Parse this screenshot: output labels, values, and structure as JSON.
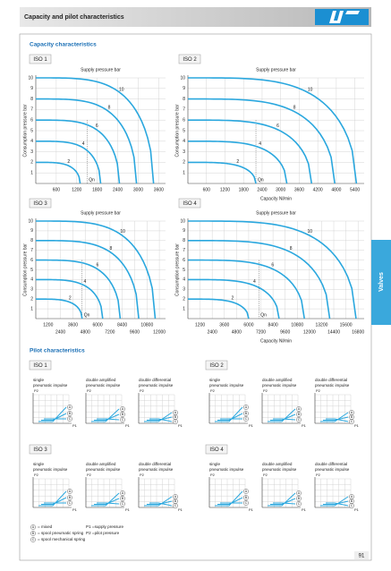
{
  "header": {
    "title": "Capacity and pilot characteristics"
  },
  "side_tab": "Valves",
  "page_number": "91",
  "capacity": {
    "heading": "Capacity characteristics",
    "top_label": "Supply pressure bar",
    "y_label": "Consumption pressure bar",
    "qn_label": "Qn",
    "charts": [
      {
        "name": "ISO 1",
        "xlim": [
          0,
          3800
        ],
        "ylim": [
          0,
          10
        ],
        "xticks": [
          600,
          1200,
          1800,
          2400,
          3000,
          3600
        ],
        "yticks": [
          1,
          2,
          3,
          4,
          5,
          6,
          7,
          8,
          9,
          10
        ],
        "qn": 1500,
        "curves": [
          {
            "pressure": 10,
            "max_flow": 3450
          },
          {
            "pressure": 8,
            "max_flow": 2950
          },
          {
            "pressure": 6,
            "max_flow": 2450
          },
          {
            "pressure": 4,
            "max_flow": 1900
          },
          {
            "pressure": 2,
            "max_flow": 1300
          }
        ]
      },
      {
        "name": "ISO 2",
        "xlim": [
          0,
          5700
        ],
        "ylim": [
          0,
          10
        ],
        "xticks": [
          600,
          1200,
          1800,
          2400,
          3000,
          3600,
          4200,
          4800,
          5400
        ],
        "yticks": [
          1,
          2,
          3,
          4,
          5,
          6,
          7,
          8,
          9,
          10
        ],
        "qn": 2200,
        "x_label": "Capacity Nl/min",
        "curves": [
          {
            "pressure": 10,
            "max_flow": 5450
          },
          {
            "pressure": 8,
            "max_flow": 4750
          },
          {
            "pressure": 6,
            "max_flow": 4000
          },
          {
            "pressure": 4,
            "max_flow": 3200
          },
          {
            "pressure": 2,
            "max_flow": 2200
          }
        ]
      },
      {
        "name": "ISO 3",
        "xlim": [
          0,
          12600
        ],
        "ylim": [
          0,
          10
        ],
        "xticks": [
          1200,
          2400,
          3600,
          4800,
          6000,
          7200,
          8400,
          9600,
          10800,
          12000
        ],
        "yticks": [
          1,
          2,
          3,
          4,
          5,
          6,
          7,
          8,
          9,
          10
        ],
        "qn": 4500,
        "curves": [
          {
            "pressure": 10,
            "max_flow": 11600
          },
          {
            "pressure": 8,
            "max_flow": 10000
          },
          {
            "pressure": 6,
            "max_flow": 8200
          },
          {
            "pressure": 4,
            "max_flow": 6500
          },
          {
            "pressure": 2,
            "max_flow": 4500
          }
        ]
      },
      {
        "name": "ISO 4",
        "xlim": [
          0,
          17400
        ],
        "ylim": [
          0,
          10
        ],
        "xticks": [
          1200,
          2400,
          3600,
          4800,
          6000,
          7200,
          8400,
          9600,
          10800,
          12000,
          13200,
          14400,
          15600,
          16800
        ],
        "yticks": [
          1,
          2,
          3,
          4,
          5,
          6,
          7,
          8,
          9,
          10
        ],
        "qn": 7000,
        "x_label": "Capacity Nl/min",
        "curves": [
          {
            "pressure": 10,
            "max_flow": 16600
          },
          {
            "pressure": 8,
            "max_flow": 14000
          },
          {
            "pressure": 6,
            "max_flow": 11500
          },
          {
            "pressure": 4,
            "max_flow": 9000
          },
          {
            "pressure": 2,
            "max_flow": 6000
          }
        ]
      }
    ]
  },
  "pilot": {
    "heading": "Pilot characteristics",
    "groups": [
      "ISO 1",
      "ISO 2",
      "ISO 3",
      "ISO 4"
    ],
    "chart_labels": [
      [
        "single",
        "pneumatic impulse"
      ],
      [
        "double amplified",
        "pneumatic impulse"
      ],
      [
        "double differential",
        "pneumatic impulse"
      ]
    ],
    "x_axis": "P1",
    "y_axis": "P2",
    "curve_labels": [
      "A",
      "B",
      "C"
    ]
  },
  "legend": {
    "symbols": [
      {
        "symbol": "A",
        "text": "= mixed"
      },
      {
        "symbol": "B",
        "text": "= spool pneumatic spring"
      },
      {
        "symbol": "C",
        "text": "= spool mechanical spring"
      }
    ],
    "notes": [
      "P1 =supply pressure",
      "P2 =pilot pressure"
    ]
  }
}
